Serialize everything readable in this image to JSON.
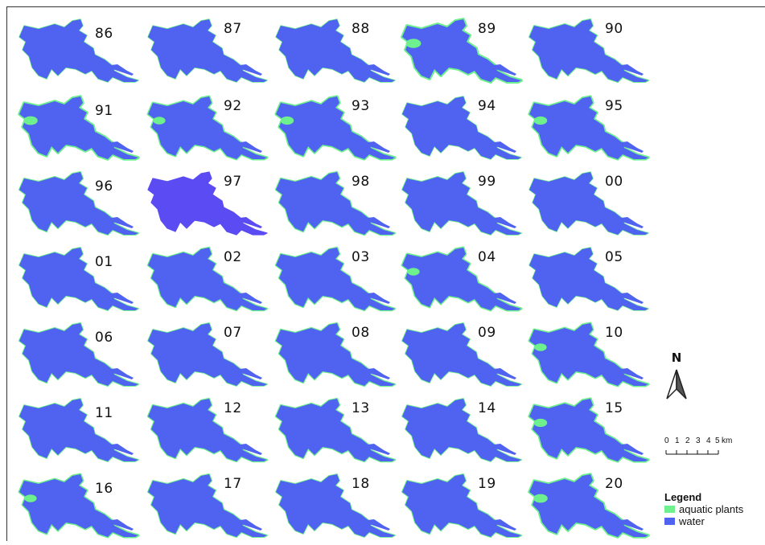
{
  "colors": {
    "water": "#4f63f0",
    "water_highlight": "#5a4cf2",
    "aquatic_plants": "#6ff08e"
  },
  "panels": [
    {
      "year": "86",
      "plants": 0.05
    },
    {
      "year": "87",
      "plants": 0.05
    },
    {
      "year": "88",
      "plants": 0.05
    },
    {
      "year": "89",
      "plants": 0.45
    },
    {
      "year": "90",
      "plants": 0.15
    },
    {
      "year": "91",
      "plants": 0.4
    },
    {
      "year": "92",
      "plants": 0.3
    },
    {
      "year": "93",
      "plants": 0.35
    },
    {
      "year": "94",
      "plants": 0.05
    },
    {
      "year": "95",
      "plants": 0.35
    },
    {
      "year": "96",
      "plants": 0.15
    },
    {
      "year": "97",
      "plants": 0.0,
      "highlight": true
    },
    {
      "year": "98",
      "plants": 0.2
    },
    {
      "year": "99",
      "plants": 0.1
    },
    {
      "year": "00",
      "plants": 0.05
    },
    {
      "year": "01",
      "plants": 0.1
    },
    {
      "year": "02",
      "plants": 0.2
    },
    {
      "year": "03",
      "plants": 0.2
    },
    {
      "year": "04",
      "plants": 0.3
    },
    {
      "year": "05",
      "plants": 0.05
    },
    {
      "year": "06",
      "plants": 0.15
    },
    {
      "year": "07",
      "plants": 0.1
    },
    {
      "year": "08",
      "plants": 0.2
    },
    {
      "year": "09",
      "plants": 0.1
    },
    {
      "year": "10",
      "plants": 0.3
    },
    {
      "year": "11",
      "plants": 0.1
    },
    {
      "year": "12",
      "plants": 0.2
    },
    {
      "year": "13",
      "plants": 0.2
    },
    {
      "year": "14",
      "plants": 0.1
    },
    {
      "year": "15",
      "plants": 0.35
    },
    {
      "year": "16",
      "plants": 0.3
    },
    {
      "year": "17",
      "plants": 0.15
    },
    {
      "year": "18",
      "plants": 0.1
    },
    {
      "year": "19",
      "plants": 0.15
    },
    {
      "year": "20",
      "plants": 0.4
    }
  ],
  "north_arrow": {
    "label": "N",
    "icon": "north-arrow-icon"
  },
  "scale_bar": {
    "ticks": [
      "0",
      "1",
      "2",
      "3",
      "4",
      "5"
    ],
    "unit": "km"
  },
  "legend": {
    "title": "Legend",
    "items": [
      {
        "label": "aquatic plants",
        "color": "#6ff08e"
      },
      {
        "label": "water",
        "color": "#4f63f0"
      }
    ]
  }
}
